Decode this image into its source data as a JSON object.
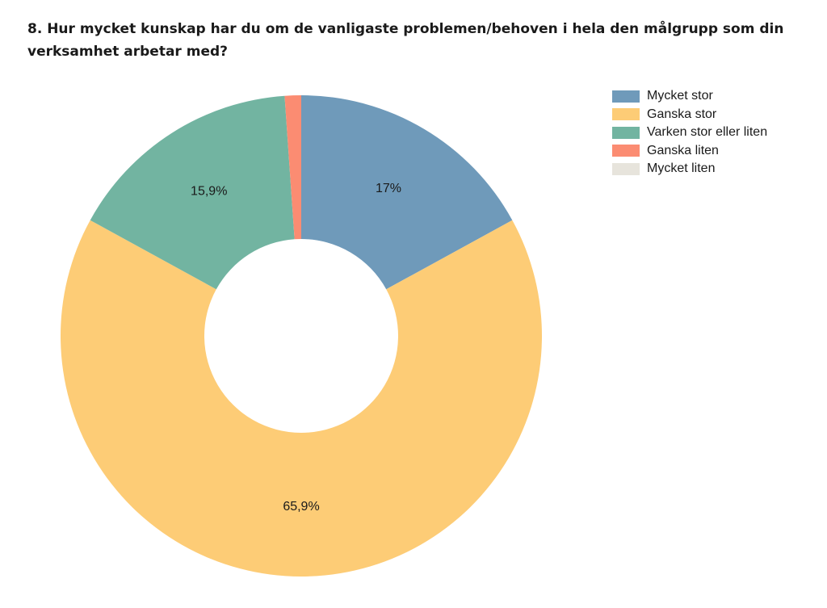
{
  "question": {
    "title": "8. Hur mycket kunskap har du om de vanligaste problemen/behoven i hela den målgrupp som din verksamhet arbetar med?"
  },
  "chart_data": {
    "type": "pie",
    "variant": "donut",
    "title": "8. Hur mycket kunskap har du om de vanligaste problemen/behoven i hela den målgrupp som din verksamhet arbetar med?",
    "legend_position": "top-right",
    "categories": [
      "Mycket stor",
      "Ganska stor",
      "Varken stor eller liten",
      "Ganska liten",
      "Mycket liten"
    ],
    "values": [
      17.0,
      65.9,
      15.9,
      1.1,
      0.0
    ],
    "data_labels": [
      "17%",
      "65,9%",
      "15,9%",
      "",
      ""
    ],
    "colors": [
      "#6f9aba",
      "#fdcc76",
      "#72b4a1",
      "#fb8c72",
      "#e7e4dc"
    ]
  }
}
